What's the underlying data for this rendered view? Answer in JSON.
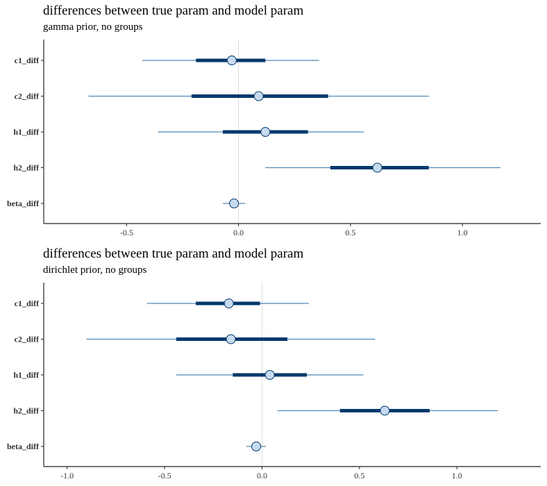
{
  "chart_data": [
    {
      "type": "interval",
      "title": "differences between true param and model param",
      "subtitle": "gamma prior, no groups",
      "xlabel": "",
      "ylabel": "",
      "grid": false,
      "reference_line": 0,
      "xlim": [
        -0.87,
        1.35
      ],
      "xticks": [
        -0.5,
        0.0,
        0.5,
        1.0
      ],
      "xtick_labels": [
        "-0.5",
        "0.0",
        "0.5",
        "1.0"
      ],
      "categories": [
        "c1_diff",
        "c2_diff",
        "h1_diff",
        "h2_diff",
        "beta_diff"
      ],
      "estimate": [
        -0.03,
        0.09,
        0.12,
        0.62,
        -0.02
      ],
      "inner_low": [
        -0.19,
        -0.21,
        -0.07,
        0.41,
        -0.02
      ],
      "inner_high": [
        0.12,
        0.4,
        0.31,
        0.85,
        -0.02
      ],
      "outer_low": [
        -0.43,
        -0.67,
        -0.36,
        0.12,
        -0.07
      ],
      "outer_high": [
        0.36,
        0.85,
        0.56,
        1.17,
        0.03
      ]
    },
    {
      "type": "interval",
      "title": "differences between true param and model param",
      "subtitle": "dirichlet prior, no groups",
      "xlabel": "",
      "ylabel": "",
      "grid": false,
      "reference_line": 0,
      "xlim": [
        -1.12,
        1.43
      ],
      "xticks": [
        -1.0,
        -0.5,
        0.0,
        0.5,
        1.0
      ],
      "xtick_labels": [
        "-1.0",
        "-0.5",
        "0.0",
        "0.5",
        "1.0"
      ],
      "categories": [
        "c1_diff",
        "c2_diff",
        "h1_diff",
        "h2_diff",
        "beta_diff"
      ],
      "estimate": [
        -0.17,
        -0.16,
        0.04,
        0.63,
        -0.03
      ],
      "inner_low": [
        -0.34,
        -0.44,
        -0.15,
        0.4,
        -0.03
      ],
      "inner_high": [
        -0.01,
        0.13,
        0.23,
        0.86,
        -0.03
      ],
      "outer_low": [
        -0.59,
        -0.9,
        -0.44,
        0.08,
        -0.08
      ],
      "outer_high": [
        0.24,
        0.58,
        0.52,
        1.21,
        0.02
      ]
    }
  ],
  "colors": {
    "outer_interval": "#4f86b5",
    "inner_interval": "#03396c",
    "point_fill": "#c6dbef",
    "point_stroke": "#03396c",
    "reference_line": "#dddddd",
    "axis": "#222222"
  }
}
